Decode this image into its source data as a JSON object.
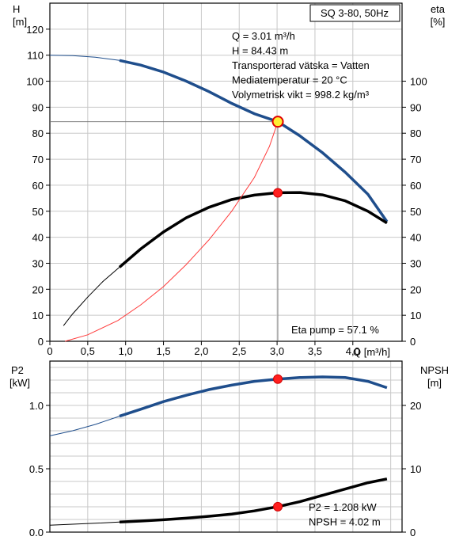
{
  "chart_data": [
    {
      "type": "line",
      "title": "SQ 3-80, 50Hz",
      "xlabel": "Q [m³/h]",
      "x_ticks": [
        "0",
        "0,5",
        "1,0",
        "1,5",
        "2,0",
        "2,5",
        "3,0",
        "3,5",
        "4,0"
      ],
      "xlim": [
        0,
        4.65
      ],
      "y_left": {
        "label_line1": "H",
        "label_line2": "[m]",
        "ylim": [
          0,
          130
        ],
        "ticks": [
          "0",
          "10",
          "20",
          "30",
          "40",
          "50",
          "60",
          "70",
          "80",
          "90",
          "100",
          "110",
          "120"
        ]
      },
      "y_right": {
        "label_line1": "eta",
        "label_line2": "[%]",
        "ylim": [
          0,
          130
        ],
        "ticks": [
          "0",
          "10",
          "20",
          "30",
          "40",
          "50",
          "60",
          "70",
          "80",
          "90",
          "100"
        ]
      },
      "grid": true,
      "info_lines": [
        "Q = 3.01 m³/h",
        "H = 84.43 m",
        "Transporterad vätska = Vatten",
        "Mediatemperatur = 20 °C",
        "Volymetrisk vikt = 998.2 kg/m³"
      ],
      "annotation": "Eta pump = 57.1 %",
      "operating_point": {
        "q": 3.01,
        "h": 84.43,
        "eta": 57.1
      },
      "series": [
        {
          "key": "H",
          "color": "#1f4e8c",
          "thick_from": 0.92,
          "x": [
            0,
            0.3,
            0.6,
            0.92,
            1.2,
            1.5,
            1.8,
            2.1,
            2.4,
            2.7,
            3.01,
            3.3,
            3.6,
            3.9,
            4.2,
            4.45
          ],
          "y": [
            110,
            109.8,
            109.2,
            108,
            106.2,
            103.5,
            100,
            96,
            91.5,
            87.5,
            84.43,
            79,
            72.5,
            65,
            56.5,
            46
          ]
        },
        {
          "key": "eta",
          "color": "#000000",
          "thick_from": 0.92,
          "x": [
            0.18,
            0.3,
            0.5,
            0.7,
            0.92,
            1.2,
            1.5,
            1.8,
            2.1,
            2.4,
            2.7,
            3.01,
            3.3,
            3.6,
            3.9,
            4.2,
            4.45
          ],
          "y": [
            6,
            10.5,
            17,
            23,
            28.5,
            35.5,
            42,
            47.5,
            51.5,
            54.5,
            56.2,
            57.1,
            57.2,
            56.3,
            54,
            50,
            45.5
          ]
        },
        {
          "key": "system",
          "color": "#ff3b3b",
          "x": [
            0.2,
            0.5,
            0.9,
            1.2,
            1.5,
            1.8,
            2.1,
            2.4,
            2.7,
            2.9,
            3.01
          ],
          "y": [
            0,
            2.5,
            8,
            14,
            21,
            29.5,
            39,
            50,
            63,
            75,
            84.43
          ]
        }
      ]
    },
    {
      "type": "line",
      "xlim": [
        0,
        4.65
      ],
      "y_left": {
        "label_line1": "P2",
        "label_line2": "[kW]",
        "ylim": [
          0,
          1.35
        ],
        "ticks": [
          "0.0",
          "0.5",
          "1.0"
        ]
      },
      "y_right": {
        "label_line1": "NPSH",
        "label_line2": "[m]",
        "ylim": [
          0,
          27
        ],
        "ticks": [
          "0",
          "10",
          "20"
        ]
      },
      "grid": true,
      "info_lines": [
        "P2 = 1.208 kW",
        "NPSH = 4.02 m"
      ],
      "operating_point": {
        "q": 3.01,
        "p2": 1.208,
        "npsh": 4.02
      },
      "series": [
        {
          "key": "P2",
          "color": "#1f4e8c",
          "thick_from": 0.92,
          "x": [
            0,
            0.3,
            0.6,
            0.92,
            1.2,
            1.5,
            1.8,
            2.1,
            2.4,
            2.7,
            3.01,
            3.3,
            3.6,
            3.9,
            4.2,
            4.45
          ],
          "y": [
            0.76,
            0.8,
            0.85,
            0.915,
            0.97,
            1.03,
            1.08,
            1.125,
            1.16,
            1.19,
            1.208,
            1.22,
            1.225,
            1.22,
            1.19,
            1.14
          ]
        },
        {
          "key": "NPSH",
          "color": "#000000",
          "thick_from": 0.92,
          "x": [
            0,
            0.3,
            0.6,
            0.92,
            1.2,
            1.5,
            1.8,
            2.1,
            2.4,
            2.7,
            3.01,
            3.3,
            3.6,
            3.9,
            4.2,
            4.45
          ],
          "y": [
            1.1,
            1.25,
            1.4,
            1.6,
            1.75,
            1.95,
            2.2,
            2.5,
            2.85,
            3.35,
            4.02,
            4.8,
            5.8,
            6.8,
            7.8,
            8.4
          ]
        }
      ]
    }
  ]
}
